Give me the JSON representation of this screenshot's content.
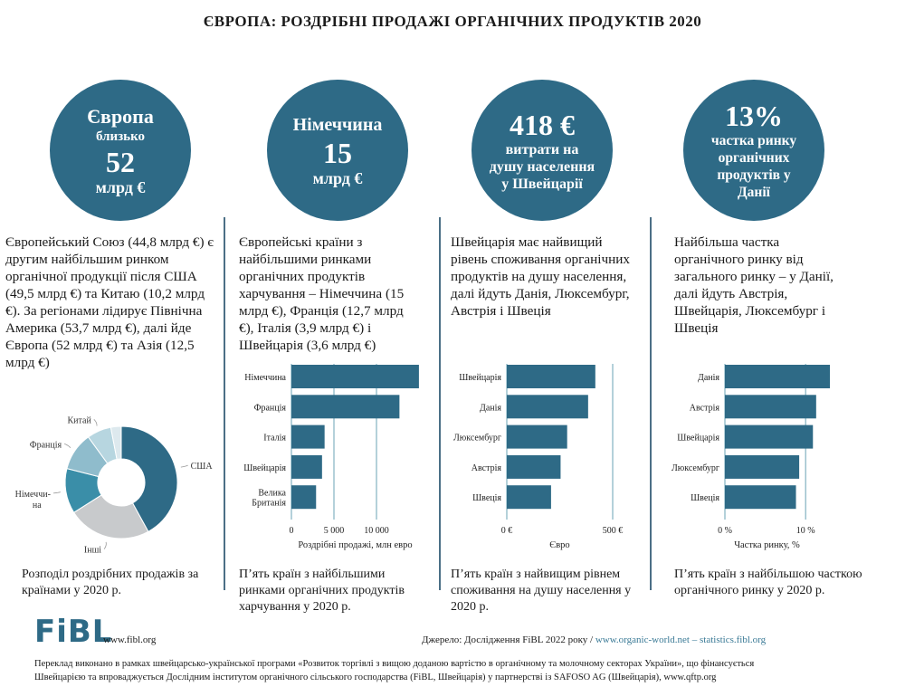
{
  "title": "ЄВРОПА: РОЗДРІБНІ ПРОДАЖІ ОРГАНІЧНИХ ПРОДУКТІВ 2020",
  "accent_color": "#2e6a86",
  "panels": [
    {
      "circle": {
        "line1": "Європа",
        "line2": "близько",
        "line3": "52",
        "line4": "млрд €"
      },
      "text": "Європейський Союз (44,8 млрд €) є другим найбільшим ринком органічної продукції після США (49,5 млрд €) та Китаю (10,2 млрд €). За регіонами лідирує Північна Америка (53,7 млрд €), далі йде Європа (52 млрд €) та Азія (12,5 млрд €)",
      "caption": "Розподіл роздрібних продажів за країнами у 2020 р."
    },
    {
      "circle": {
        "line1": "Німеччина",
        "line2": "15",
        "line3": "млрд €"
      },
      "text": "Європейські країни з найбільшими ринками органічних продуктів харчування – Німеччина (15 млрд €), Франція (12,7 млрд €), Італія (3,9 млрд €) і Швейцарія (3,6 млрд €)",
      "caption": "П’ять країн з найбільшими ринками органічних продуктів харчування у 2020 р."
    },
    {
      "circle": {
        "line1": "418 €",
        "line2": "витрати на",
        "line3": "душу населення",
        "line4": "у Швейцарії"
      },
      "text": "Швейцарія має найвищий рівень споживання органічних продуктів на душу населення, далі йдуть Данія, Люксембург, Австрія і Швеція",
      "caption": "П’ять країн з найвищим рівнем споживання на душу населення у 2020 р."
    },
    {
      "circle": {
        "line1": "13%",
        "line2": "частка ринку",
        "line3": "органічних",
        "line4": "продуктів у",
        "line5": "Данії"
      },
      "text": "Найбільша частка органічного ринку від загального ринку – у Данії, далі йдуть Австрія, Швейцарія, Люксембург і Швеція",
      "caption": "П’ять країн з найбільшою часткою органічного ринку у 2020 р."
    }
  ],
  "chart_data": [
    {
      "type": "pie",
      "title": "Розподіл роздрібних продажів за країнами у 2020 р.",
      "donut": true,
      "categories": [
        "США",
        "Інші",
        "Німеччина",
        "Франція",
        "Китай",
        ""
      ],
      "labels": [
        "США",
        "Інші",
        "Німеччи-",
        "Франція",
        "Китай",
        ""
      ],
      "labels_line2": [
        "",
        "",
        "на",
        "",
        "",
        ""
      ],
      "values": [
        42,
        24,
        13,
        11,
        7,
        3
      ],
      "colors": [
        "#2e6a86",
        "#c8cacc",
        "#3a8ea8",
        "#8fbccc",
        "#b7d6e0",
        "#dde9ee"
      ]
    },
    {
      "type": "bar",
      "orientation": "horizontal",
      "categories": [
        "Німеччина",
        "Франція",
        "Італія",
        "Швейцарія",
        "Велика Британія"
      ],
      "category_lines": [
        [
          "Німеччина"
        ],
        [
          "Франція"
        ],
        [
          "Італія"
        ],
        [
          "Швейцарія"
        ],
        [
          "Велика",
          "Британія"
        ]
      ],
      "values": [
        14990,
        12700,
        3900,
        3600,
        2900
      ],
      "xlabel": "Роздрібні продажі, млн евро",
      "xlim": [
        0,
        15000
      ],
      "ticks": [
        0,
        5000,
        10000
      ],
      "tick_labels": [
        "0",
        "5 000",
        "10 000"
      ],
      "grid": true
    },
    {
      "type": "bar",
      "orientation": "horizontal",
      "categories": [
        "Швейцарія",
        "Данія",
        "Люксембург",
        "Австрія",
        "Швеція"
      ],
      "category_lines": [
        [
          "Швейцарія"
        ],
        [
          "Данія"
        ],
        [
          "Люксембург"
        ],
        [
          "Австрія"
        ],
        [
          "Швеція"
        ]
      ],
      "values": [
        418,
        384,
        285,
        254,
        209
      ],
      "xlabel": "Євро",
      "xlim": [
        0,
        500
      ],
      "ticks": [
        0,
        500
      ],
      "tick_labels": [
        "0 €",
        "500 €"
      ],
      "grid": true
    },
    {
      "type": "bar",
      "orientation": "horizontal",
      "categories": [
        "Данія",
        "Австрія",
        "Швейцарія",
        "Люксембург",
        "Швеція"
      ],
      "category_lines": [
        [
          "Данія"
        ],
        [
          "Австрія"
        ],
        [
          "Швейцарія"
        ],
        [
          "Люксембург"
        ],
        [
          "Швеція"
        ]
      ],
      "values": [
        13.0,
        11.3,
        10.9,
        9.2,
        8.8
      ],
      "xlabel": "Частка ринку, %",
      "xlim": [
        0,
        13
      ],
      "ticks": [
        0,
        10
      ],
      "tick_labels": [
        "0 %",
        "10 %"
      ],
      "grid": true
    }
  ],
  "footer": {
    "logo": "FiBL",
    "url": "www.fibl.org",
    "source_prefix": "Джерело: Дослідження FiBL 2022 року / ",
    "source_link1": "www.organic-world.net",
    "source_sep": " – ",
    "source_link2": "statistics.fibl.org",
    "note_line1": "Переклад виконано в рамках швейцарсько-української програми «Розвиток торгівлі з вищою доданою вартістю в органічному та молочному секторах України», що фінансується",
    "note_line2": "Швейцарією та впроваджується Дослідним інститутом органічного сільського господарства (FiBL, Швейцарія) у партнерстві із SAFOSO AG (Швейцарія), www.qftp.org"
  }
}
